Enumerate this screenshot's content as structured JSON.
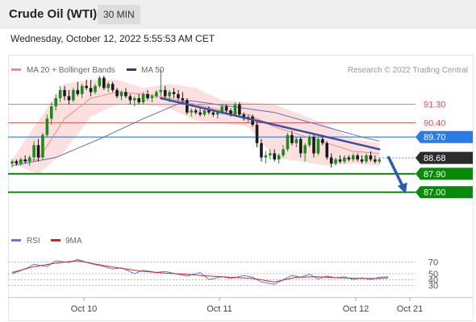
{
  "header": {
    "title": "Crude Oil (WTI)",
    "interval": "30 MIN"
  },
  "datetime": "Wednesday, October 12, 2022 5:55:53 AM CET",
  "copyright": "Research © 2022 Trading Central",
  "colors": {
    "candle_up": "#1e8a1e",
    "candle_down": "#1a1a1a",
    "bollinger_fill": "#fcdcdc",
    "ma20": "#f08a8a",
    "ma50": "#5a6fc0",
    "trendline": "#3a4fa0",
    "resistance": "#e74c4c",
    "pivot": "#2c7be5",
    "support": "#0a8a0a",
    "last_price": "#2b2b2b",
    "rsi": "#5b7fd6",
    "rsi_ma": "#e02020"
  },
  "chart_data": [
    {
      "type": "candlestick",
      "title": "",
      "legend": [
        {
          "name": "MA 20 + Bollinger Bands",
          "color": "#f08a8a"
        },
        {
          "name": "MA 50",
          "color": "#2c3e7b"
        }
      ],
      "legend_position": "top-left",
      "ylim": [
        86.2,
        92.9
      ],
      "x_ticks": [
        "Oct 10",
        "Oct 11",
        "Oct 12",
        "Oct 21"
      ],
      "candles": [
        [
          88.4,
          88.6,
          88.2,
          88.5
        ],
        [
          88.5,
          88.6,
          88.3,
          88.4
        ],
        [
          88.4,
          88.7,
          88.3,
          88.6
        ],
        [
          88.6,
          88.8,
          88.4,
          88.5
        ],
        [
          88.5,
          88.8,
          88.3,
          88.7
        ],
        [
          88.7,
          89.5,
          88.5,
          89.3
        ],
        [
          89.3,
          89.6,
          88.5,
          88.7
        ],
        [
          88.7,
          89.9,
          88.6,
          89.8
        ],
        [
          89.8,
          90.8,
          89.7,
          90.6
        ],
        [
          90.6,
          91.4,
          90.3,
          91.2
        ],
        [
          91.2,
          91.8,
          91.0,
          91.6
        ],
        [
          91.6,
          92.2,
          91.4,
          92.0
        ],
        [
          92.0,
          92.2,
          91.5,
          91.7
        ],
        [
          91.7,
          92.0,
          91.3,
          91.5
        ],
        [
          91.5,
          92.1,
          91.4,
          92.0
        ],
        [
          92.0,
          92.4,
          91.7,
          91.8
        ],
        [
          91.8,
          92.3,
          91.6,
          92.2
        ],
        [
          92.2,
          92.5,
          92.0,
          92.1
        ],
        [
          92.1,
          92.5,
          91.7,
          91.9
        ],
        [
          91.9,
          92.3,
          91.8,
          92.2
        ],
        [
          92.2,
          92.7,
          92.1,
          92.6
        ],
        [
          92.6,
          92.7,
          92.0,
          92.1
        ],
        [
          92.1,
          92.4,
          91.9,
          92.3
        ],
        [
          92.3,
          92.4,
          91.9,
          92.0
        ],
        [
          92.0,
          92.1,
          91.6,
          91.7
        ],
        [
          91.7,
          92.0,
          91.5,
          91.9
        ],
        [
          91.9,
          92.1,
          91.6,
          91.7
        ],
        [
          91.7,
          91.8,
          91.3,
          91.5
        ],
        [
          91.5,
          91.7,
          91.2,
          91.6
        ],
        [
          91.6,
          91.8,
          91.3,
          91.4
        ],
        [
          91.4,
          91.9,
          91.3,
          91.8
        ],
        [
          91.8,
          92.0,
          91.5,
          91.6
        ],
        [
          91.6,
          91.8,
          91.4,
          91.7
        ],
        [
          91.7,
          92.0,
          91.6,
          91.9
        ],
        [
          91.9,
          93.0,
          91.7,
          92.0
        ],
        [
          92.0,
          92.2,
          91.6,
          91.7
        ],
        [
          91.7,
          92.0,
          91.4,
          91.9
        ],
        [
          91.9,
          92.1,
          91.6,
          91.8
        ],
        [
          91.8,
          92.0,
          91.5,
          91.6
        ],
        [
          91.6,
          91.9,
          91.3,
          91.5
        ],
        [
          91.5,
          91.6,
          90.8,
          90.9
        ],
        [
          90.9,
          91.1,
          90.7,
          91.0
        ],
        [
          91.0,
          91.1,
          90.8,
          90.9
        ],
        [
          90.9,
          91.1,
          90.7,
          90.8
        ],
        [
          90.8,
          91.1,
          90.7,
          91.0
        ],
        [
          91.0,
          91.2,
          90.8,
          90.9
        ],
        [
          90.9,
          91.0,
          90.7,
          90.8
        ],
        [
          90.8,
          91.0,
          90.6,
          90.9
        ],
        [
          90.9,
          91.3,
          90.8,
          91.2
        ],
        [
          91.2,
          91.3,
          90.9,
          91.0
        ],
        [
          91.0,
          91.1,
          90.7,
          90.8
        ],
        [
          90.8,
          91.4,
          90.7,
          91.3
        ],
        [
          91.3,
          91.4,
          90.7,
          90.8
        ],
        [
          90.8,
          90.9,
          90.5,
          90.6
        ],
        [
          90.6,
          90.8,
          90.4,
          90.7
        ],
        [
          90.7,
          90.8,
          90.2,
          90.3
        ],
        [
          90.3,
          90.5,
          89.2,
          89.4
        ],
        [
          89.4,
          89.6,
          88.5,
          88.7
        ],
        [
          88.7,
          89.0,
          88.4,
          88.8
        ],
        [
          88.8,
          89.1,
          88.6,
          88.9
        ],
        [
          88.9,
          89.1,
          88.5,
          88.6
        ],
        [
          88.6,
          88.9,
          88.4,
          88.8
        ],
        [
          88.8,
          89.3,
          88.7,
          89.1
        ],
        [
          89.1,
          89.9,
          89.0,
          89.8
        ],
        [
          89.8,
          90.0,
          89.3,
          89.4
        ],
        [
          89.4,
          89.7,
          89.2,
          89.6
        ],
        [
          89.6,
          89.7,
          88.7,
          88.9
        ],
        [
          88.9,
          89.4,
          88.5,
          89.3
        ],
        [
          89.3,
          89.8,
          89.2,
          89.7
        ],
        [
          89.7,
          89.8,
          88.7,
          88.9
        ],
        [
          88.9,
          89.7,
          88.8,
          89.6
        ],
        [
          89.6,
          89.8,
          89.3,
          89.4
        ],
        [
          89.4,
          89.5,
          88.6,
          88.7
        ],
        [
          88.7,
          88.9,
          88.2,
          88.4
        ],
        [
          88.4,
          88.7,
          88.3,
          88.6
        ],
        [
          88.6,
          88.8,
          88.4,
          88.5
        ],
        [
          88.5,
          88.8,
          88.4,
          88.7
        ],
        [
          88.7,
          88.8,
          88.5,
          88.6
        ],
        [
          88.6,
          88.9,
          88.5,
          88.8
        ],
        [
          88.8,
          88.9,
          88.5,
          88.6
        ],
        [
          88.6,
          88.8,
          88.4,
          88.5
        ],
        [
          88.5,
          88.9,
          88.4,
          88.8
        ],
        [
          88.8,
          89.0,
          88.5,
          88.6
        ],
        [
          88.6,
          88.8,
          88.4,
          88.5
        ],
        [
          88.5,
          88.7,
          88.4,
          88.6
        ]
      ],
      "ma20": [
        [
          0,
          88.5
        ],
        [
          6,
          88.6
        ],
        [
          12,
          90.6
        ],
        [
          18,
          91.6
        ],
        [
          24,
          91.9
        ],
        [
          30,
          91.8
        ],
        [
          36,
          91.6
        ],
        [
          42,
          91.3
        ],
        [
          48,
          91.0
        ],
        [
          54,
          90.8
        ],
        [
          60,
          90.2
        ],
        [
          66,
          89.8
        ],
        [
          72,
          89.4
        ],
        [
          78,
          89.0
        ],
        [
          84,
          88.9
        ]
      ],
      "bollinger_upper": [
        [
          0,
          88.6
        ],
        [
          6,
          90.5
        ],
        [
          12,
          92.3
        ],
        [
          18,
          92.5
        ],
        [
          24,
          92.5
        ],
        [
          30,
          92.1
        ],
        [
          36,
          92.3
        ],
        [
          42,
          92.1
        ],
        [
          48,
          91.5
        ],
        [
          54,
          91.4
        ],
        [
          60,
          91.3
        ],
        [
          66,
          90.8
        ],
        [
          72,
          90.3
        ],
        [
          78,
          89.6
        ],
        [
          84,
          89.4
        ]
      ],
      "bollinger_lower": [
        [
          0,
          88.4
        ],
        [
          6,
          87.9
        ],
        [
          12,
          89.0
        ],
        [
          18,
          90.7
        ],
        [
          24,
          91.3
        ],
        [
          30,
          91.3
        ],
        [
          36,
          91.1
        ],
        [
          42,
          90.5
        ],
        [
          48,
          90.4
        ],
        [
          54,
          90.2
        ],
        [
          60,
          88.7
        ],
        [
          66,
          88.5
        ],
        [
          72,
          88.3
        ],
        [
          78,
          88.4
        ],
        [
          84,
          88.3
        ]
      ],
      "ma50": [
        [
          0,
          88.3
        ],
        [
          10,
          88.7
        ],
        [
          20,
          89.6
        ],
        [
          30,
          90.6
        ],
        [
          40,
          91.5
        ],
        [
          50,
          91.2
        ],
        [
          60,
          90.9
        ],
        [
          70,
          90.3
        ],
        [
          80,
          89.7
        ],
        [
          84,
          89.5
        ]
      ],
      "trendline": [
        [
          34,
          91.6
        ],
        [
          84,
          89.1
        ]
      ],
      "forecast_arrow": [
        [
          86,
          88.75
        ],
        [
          90,
          87.0
        ]
      ],
      "levels": [
        {
          "value": 91.3,
          "label": "91.30",
          "kind": "resistance"
        },
        {
          "value": 90.4,
          "label": "90.40",
          "kind": "resistance"
        },
        {
          "value": 89.7,
          "label": "89.70",
          "kind": "pivot"
        },
        {
          "value": 88.68,
          "label": "88.68",
          "kind": "last"
        },
        {
          "value": 87.9,
          "label": "87.90",
          "kind": "support"
        },
        {
          "value": 87.0,
          "label": "87.00",
          "kind": "support"
        }
      ]
    },
    {
      "type": "line",
      "title": "",
      "legend": [
        {
          "name": "RSI",
          "color": "#5b7fd6"
        },
        {
          "name": "9MA",
          "color": "#e02020"
        }
      ],
      "ylim": [
        20,
        80
      ],
      "y_ticks": [
        70,
        50,
        40,
        30
      ],
      "rsi": [
        [
          0,
          50
        ],
        [
          3,
          58
        ],
        [
          5,
          66
        ],
        [
          8,
          62
        ],
        [
          10,
          72
        ],
        [
          13,
          69
        ],
        [
          15,
          74
        ],
        [
          18,
          67
        ],
        [
          20,
          64
        ],
        [
          23,
          58
        ],
        [
          25,
          60
        ],
        [
          28,
          50
        ],
        [
          30,
          56
        ],
        [
          33,
          52
        ],
        [
          35,
          54
        ],
        [
          38,
          49
        ],
        [
          40,
          46
        ],
        [
          43,
          52
        ],
        [
          45,
          40
        ],
        [
          48,
          45
        ],
        [
          50,
          42
        ],
        [
          53,
          47
        ],
        [
          55,
          44
        ],
        [
          57,
          36
        ],
        [
          60,
          32
        ],
        [
          62,
          40
        ],
        [
          64,
          47
        ],
        [
          66,
          44
        ],
        [
          68,
          49
        ],
        [
          70,
          41
        ],
        [
          72,
          46
        ],
        [
          74,
          43
        ],
        [
          76,
          45
        ],
        [
          78,
          40
        ],
        [
          80,
          43
        ],
        [
          82,
          40
        ],
        [
          84,
          44
        ],
        [
          86,
          45
        ]
      ],
      "rsi_ma": [
        [
          0,
          52
        ],
        [
          5,
          62
        ],
        [
          10,
          68
        ],
        [
          15,
          72
        ],
        [
          20,
          65
        ],
        [
          25,
          59
        ],
        [
          30,
          54
        ],
        [
          35,
          51
        ],
        [
          40,
          49
        ],
        [
          45,
          46
        ],
        [
          50,
          44
        ],
        [
          55,
          42
        ],
        [
          60,
          36
        ],
        [
          65,
          44
        ],
        [
          70,
          45
        ],
        [
          75,
          43
        ],
        [
          80,
          42
        ],
        [
          84,
          42
        ],
        [
          86,
          43
        ]
      ]
    }
  ]
}
